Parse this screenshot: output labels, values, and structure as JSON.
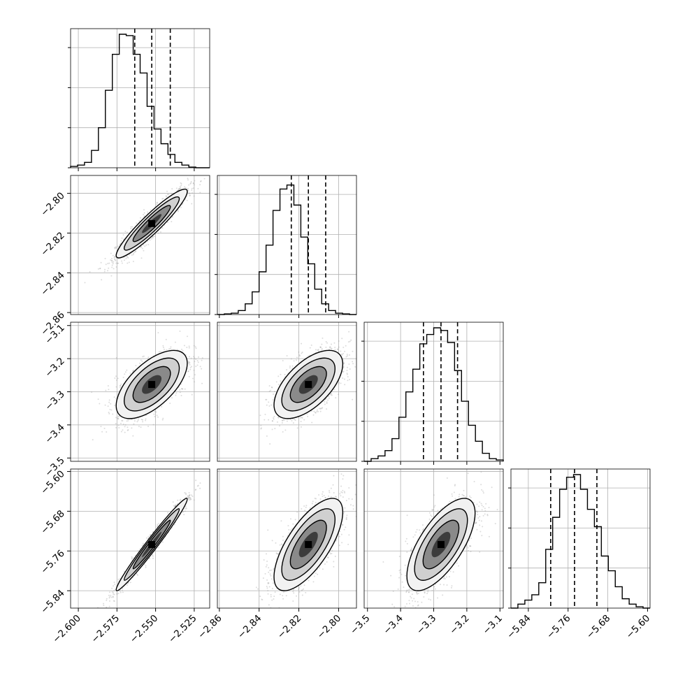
{
  "chart_data": {
    "type": "corner",
    "description_free": true,
    "params": [
      {
        "range": [
          -2.605,
          -2.515
        ],
        "quantiles": [
          -2.5635,
          -2.5525,
          -2.5405
        ],
        "ticks": [
          -2.6,
          -2.575,
          -2.55,
          -2.525
        ],
        "tick_labels": [
          "−2.600",
          "−2.575",
          "−2.550",
          "−2.525"
        ]
      },
      {
        "range": [
          -2.861,
          -2.791
        ],
        "quantiles": [
          -2.8238,
          -2.8152,
          -2.8065
        ],
        "ticks": [
          -2.86,
          -2.84,
          -2.82,
          -2.8
        ],
        "tick_labels": [
          "−2.86",
          "−2.84",
          "−2.82",
          "−2.80"
        ]
      },
      {
        "range": [
          -3.51,
          -3.09
        ],
        "quantiles": [
          -3.331,
          -3.278,
          -3.228
        ],
        "ticks": [
          -3.5,
          -3.4,
          -3.3,
          -3.2,
          -3.1
        ],
        "tick_labels": [
          "−3.5",
          "−3.4",
          "−3.3",
          "−3.2",
          "−3.1"
        ]
      },
      {
        "range": [
          -5.875,
          -5.595
        ],
        "quantiles": [
          -5.795,
          -5.747,
          -5.702
        ],
        "ticks": [
          -5.84,
          -5.76,
          -5.68,
          -5.6
        ],
        "tick_labels": [
          "−5.84",
          "−5.76",
          "−5.68",
          "−5.60"
        ]
      }
    ],
    "histograms": [
      [
        0.01,
        0.02,
        0.04,
        0.13,
        0.3,
        0.58,
        0.85,
        1.0,
        0.99,
        0.85,
        0.71,
        0.46,
        0.29,
        0.18,
        0.1,
        0.04,
        0.02,
        0.005,
        0.0,
        0.0
      ],
      [
        0.0,
        0.005,
        0.01,
        0.03,
        0.08,
        0.17,
        0.32,
        0.52,
        0.78,
        0.94,
        0.97,
        0.82,
        0.58,
        0.38,
        0.19,
        0.08,
        0.03,
        0.01,
        0.005,
        0.0
      ],
      [
        0.0,
        0.02,
        0.04,
        0.08,
        0.17,
        0.33,
        0.52,
        0.69,
        0.88,
        0.95,
        1.0,
        0.98,
        0.89,
        0.68,
        0.45,
        0.27,
        0.15,
        0.06,
        0.02,
        0.01
      ],
      [
        0.0,
        0.03,
        0.06,
        0.1,
        0.19,
        0.44,
        0.68,
        0.89,
        0.98,
        1.0,
        0.89,
        0.74,
        0.61,
        0.39,
        0.28,
        0.16,
        0.07,
        0.03,
        0.01,
        0.0
      ]
    ],
    "correlations": [
      {
        "row": 1,
        "col": 0,
        "rho": 0.93
      },
      {
        "row": 2,
        "col": 0,
        "rho": 0.62
      },
      {
        "row": 2,
        "col": 1,
        "rho": 0.6
      },
      {
        "row": 3,
        "col": 0,
        "rho": 0.98
      },
      {
        "row": 3,
        "col": 1,
        "rho": 0.7
      },
      {
        "row": 3,
        "col": 2,
        "rho": 0.68
      }
    ],
    "grid": true,
    "colors": {
      "line": "#000000",
      "grid": "#b0b0b0",
      "points": "#9a9a9a"
    }
  }
}
